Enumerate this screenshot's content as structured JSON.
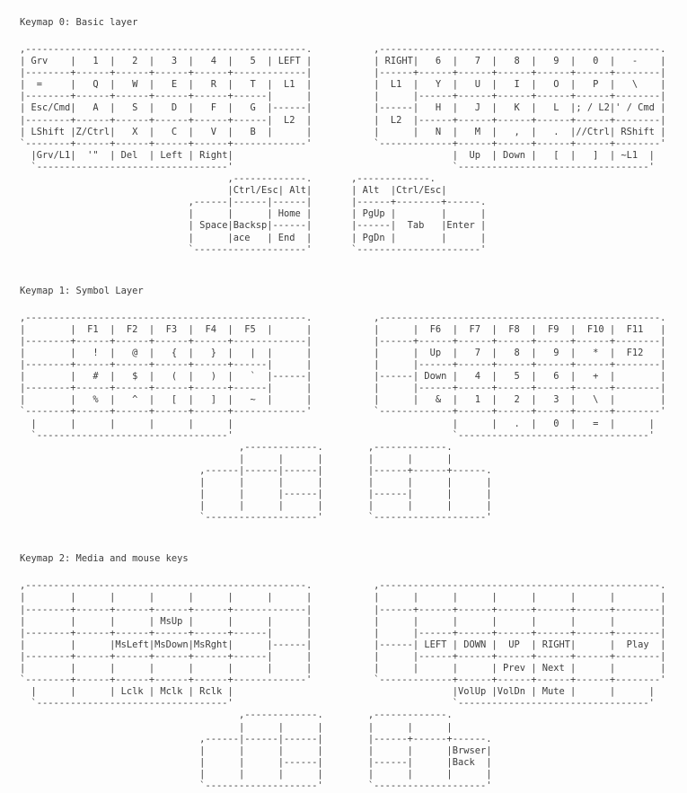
{
  "colors": {
    "text": "#3c3c3c",
    "background": "#fdfdfd"
  },
  "sections": [
    {
      "title": "Keymap 0: Basic layer",
      "art": [
        ",--------------------------------------------------.           ,--------------------------------------------------.",
        "| Grv    |   1  |   2  |   3  |   4  |   5  | LEFT |           | RIGHT|   6  |   7  |   8  |   9  |   0  |   -    |",
        "|--------+------+------+------+------+-------------|           |------+------+------+------+------+------+--------|",
        "|  =     |   Q  |   W  |   E  |   R  |   T  |  L1  |           |  L1  |   Y  |   U  |   I  |   O  |   P  |   \\    |",
        "|--------+------+------+------+------+------|      |           |      |------+------+------+------+------+--------|",
        "| Esc/Cmd|   A  |   S  |   D  |   F  |   G  |------|           |------|   H  |   J  |   K  |   L  |; / L2|' / Cmd |",
        "|--------+------+------+------+------+------|  L2  |           |  L2  |------+------+------+------+------+--------|",
        "| LShift |Z/Ctrl|   X  |   C  |   V  |   B  |      |           |      |   N  |   M  |   ,  |   .  |//Ctrl| RShift |",
        "`--------+------+------+------+------+-------------'           `-------------+------+------+------+------+--------'",
        "  |Grv/L1|  '\"  | Del  | Left | Right|                                       |  Up  | Down |   [  |   ]  | ~L1  |",
        "  `----------------------------------'                                       `----------------------------------'",
        "                                     ,-------------.       ,-------------.",
        "                                     |Ctrl/Esc| Alt|       | Alt  |Ctrl/Esc|",
        "                              ,------|------|------|       |------+--------+------.",
        "                              |      |      | Home |       | PgUp |        |      |",
        "                              | Space|Backsp|------|       |------|  Tab   |Enter |",
        "                              |      |ace   | End  |       | PgDn |        |      |",
        "                              `--------------------'       `----------------------'"
      ]
    },
    {
      "title": "Keymap 1: Symbol Layer",
      "art": [
        ",--------------------------------------------------.           ,--------------------------------------------------.",
        "|        |  F1  |  F2  |  F3  |  F4  |  F5  |      |           |      |  F6  |  F7  |  F8  |  F9  |  F10 |  F11   |",
        "|--------+------+------+------+------+-------------|           |------+------+------+------+------+------+--------|",
        "|        |   !  |   @  |   {  |   }  |   |  |      |           |      |  Up  |   7  |   8  |   9  |   *  |  F12   |",
        "|--------+------+------+------+------+------|      |           |      |------+------+------+------+------+--------|",
        "|        |   #  |   $  |   (  |   )  |   `  |------|           |------| Down |   4  |   5  |   6  |   +  |        |",
        "|--------+------+------+------+------+------|      |           |      |------+------+------+------+------+--------|",
        "|        |   %  |   ^  |   [  |   ]  |   ~  |      |           |      |   &  |   1  |   2  |   3  |   \\  |        |",
        "`--------+------+------+------+------+-------------'           `-------------+------+------+------+------+--------'",
        "  |      |      |      |      |      |                                       |      |   .  |   0  |   =  |      |",
        "  `----------------------------------'                                       `----------------------------------'",
        "                                       ,-------------.        ,-------------.",
        "                                       |      |      |        |      |      |",
        "                                ,------|------|------|        |------+------+------.",
        "                                |      |      |      |        |      |      |      |",
        "                                |      |      |------|        |------|      |      |",
        "                                |      |      |      |        |      |      |      |",
        "                                `--------------------'        `--------------------'"
      ]
    },
    {
      "title": "Keymap 2: Media and mouse keys",
      "art": [
        ",--------------------------------------------------.           ,--------------------------------------------------.",
        "|        |      |      |      |      |      |      |           |      |      |      |      |      |      |        |",
        "|--------+------+------+------+------+-------------|           |------+------+------+------+------+------+--------|",
        "|        |      |      | MsUp |      |      |      |           |      |      |      |      |      |      |        |",
        "|--------+------+------+------+------+------|      |           |      |------+------+------+------+------+--------|",
        "|        |      |MsLeft|MsDown|MsRght|      |------|           |------| LEFT | DOWN |  UP  | RIGHT|      |  Play  |",
        "|--------+------+------+------+------+------|      |           |      |------+------+------+------+------+--------|",
        "|        |      |      |      |      |      |      |           |      |      |      | Prev | Next |      |        |",
        "`--------+------+------+------+------+-------------'           `-------------+------+------+------+------+--------'",
        "  |      |      | Lclk | Mclk | Rclk |                                       |VolUp |VolDn | Mute |      |      |",
        "  `----------------------------------'                                       `----------------------------------'",
        "                                       ,-------------.        ,-------------.",
        "                                       |      |      |        |      |      |",
        "                                ,------|------|------|        |------+------+------.",
        "                                |      |      |      |        |      |      |Brwser|",
        "                                |      |      |------|        |------|      |Back  |",
        "                                |      |      |      |        |      |      |      |",
        "                                `--------------------'        `--------------------'"
      ]
    }
  ]
}
